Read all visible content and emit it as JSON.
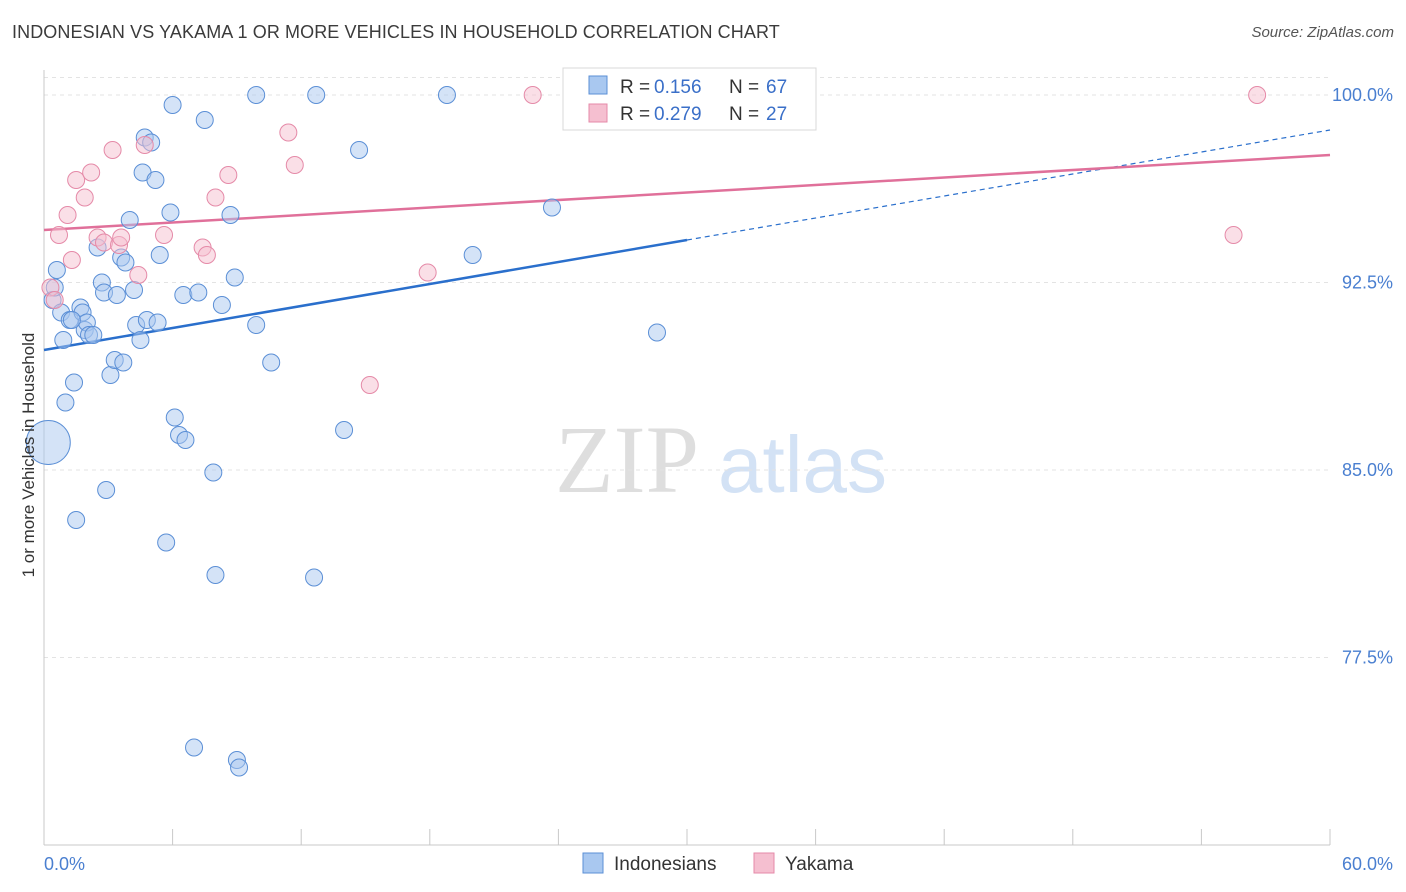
{
  "header": {
    "title": "INDONESIAN VS YAKAMA 1 OR MORE VEHICLES IN HOUSEHOLD CORRELATION CHART",
    "source": "Source: ZipAtlas.com"
  },
  "watermark": {
    "zip": "ZIP",
    "atlas": "atlas"
  },
  "colors": {
    "blue_fill": "#a9c8f0",
    "blue_stroke": "#5b8fd6",
    "blue_line": "#2a6fcc",
    "pink_fill": "#f5bfd0",
    "pink_stroke": "#e58aa8",
    "pink_line": "#e0709a",
    "grid": "#e3e3e3",
    "tick_label": "#4a7fd0"
  },
  "legend": {
    "rows": [
      {
        "r_label": "R =",
        "r_value": "0.156",
        "n_label": "N =",
        "n_value": "67",
        "series": "Indonesians"
      },
      {
        "r_label": "R =",
        "r_value": "0.279",
        "n_label": "N =",
        "n_value": "27",
        "series": "Yakama"
      }
    ]
  },
  "chart_data": {
    "type": "scatter",
    "xlabel": "",
    "ylabel": "1 or more Vehicles in Household",
    "xlim": [
      0,
      60
    ],
    "ylim": [
      70.0,
      101.0
    ],
    "x_tick_labels": [
      "0.0%",
      "60.0%"
    ],
    "y_ticks": [
      77.5,
      85.0,
      92.5,
      100.0
    ],
    "y_tick_labels": [
      "77.5%",
      "85.0%",
      "92.5%",
      "100.0%"
    ],
    "grid": true,
    "legend_placement": "bottom-center",
    "series": [
      {
        "name": "Indonesians",
        "color": "#a9c8f0",
        "points": [
          [
            0.2,
            86.1,
            30
          ],
          [
            0.4,
            91.8,
            10
          ],
          [
            0.5,
            92.3,
            10
          ],
          [
            0.6,
            93.0,
            10
          ],
          [
            0.8,
            91.3,
            10
          ],
          [
            0.9,
            90.2,
            10
          ],
          [
            1.0,
            87.7,
            10
          ],
          [
            1.2,
            91.0,
            10
          ],
          [
            1.4,
            88.5,
            10
          ],
          [
            1.5,
            83.0,
            10
          ],
          [
            1.7,
            91.5,
            10
          ],
          [
            1.8,
            91.3,
            10
          ],
          [
            1.9,
            90.6,
            10
          ],
          [
            2.0,
            90.9,
            10
          ],
          [
            2.1,
            90.4,
            10
          ],
          [
            2.3,
            90.4,
            10
          ],
          [
            2.5,
            93.9,
            10
          ],
          [
            2.7,
            92.5,
            10
          ],
          [
            2.8,
            92.1,
            10
          ],
          [
            2.9,
            84.2,
            10
          ],
          [
            3.1,
            88.8,
            10
          ],
          [
            3.3,
            89.4,
            10
          ],
          [
            3.4,
            92.0,
            10
          ],
          [
            3.6,
            93.5,
            10
          ],
          [
            3.7,
            89.3,
            10
          ],
          [
            3.8,
            93.3,
            10
          ],
          [
            4.0,
            95.0,
            10
          ],
          [
            4.2,
            92.2,
            10
          ],
          [
            4.3,
            90.8,
            10
          ],
          [
            4.5,
            90.2,
            10
          ],
          [
            4.6,
            96.9,
            10
          ],
          [
            4.7,
            98.3,
            10
          ],
          [
            4.8,
            91.0,
            10
          ],
          [
            5.0,
            98.1,
            10
          ],
          [
            5.2,
            96.6,
            10
          ],
          [
            5.3,
            90.9,
            10
          ],
          [
            5.4,
            93.6,
            10
          ],
          [
            5.7,
            82.1,
            10
          ],
          [
            5.9,
            95.3,
            10
          ],
          [
            6.0,
            99.6,
            10
          ],
          [
            6.1,
            87.1,
            10
          ],
          [
            6.3,
            86.4,
            10
          ],
          [
            6.5,
            92.0,
            10
          ],
          [
            6.6,
            86.2,
            10
          ],
          [
            7.0,
            73.9,
            10
          ],
          [
            7.2,
            92.1,
            10
          ],
          [
            7.5,
            99.0,
            10
          ],
          [
            7.9,
            84.9,
            10
          ],
          [
            8.0,
            80.8,
            10
          ],
          [
            8.3,
            91.6,
            10
          ],
          [
            8.7,
            95.2,
            10
          ],
          [
            8.9,
            92.7,
            10
          ],
          [
            9.0,
            73.4,
            10
          ],
          [
            9.1,
            73.1,
            10
          ],
          [
            9.9,
            100.0,
            10
          ],
          [
            9.9,
            90.8,
            10
          ],
          [
            10.6,
            89.3,
            10
          ],
          [
            12.7,
            100.0,
            10
          ],
          [
            12.6,
            80.7,
            10
          ],
          [
            14.0,
            86.6,
            10
          ],
          [
            14.7,
            97.8,
            10
          ],
          [
            18.8,
            100.0,
            10
          ],
          [
            20.0,
            93.6,
            10
          ],
          [
            23.7,
            95.5,
            10
          ],
          [
            28.6,
            90.5,
            10
          ],
          [
            29.5,
            100.0,
            10
          ],
          [
            1.3,
            91.0,
            10
          ]
        ]
      },
      {
        "name": "Yakama",
        "color": "#f5bfd0",
        "points": [
          [
            0.3,
            92.3,
            10
          ],
          [
            0.5,
            91.8,
            10
          ],
          [
            0.7,
            94.4,
            10
          ],
          [
            1.1,
            95.2,
            10
          ],
          [
            1.3,
            93.4,
            10
          ],
          [
            1.5,
            96.6,
            10
          ],
          [
            1.9,
            95.9,
            10
          ],
          [
            2.2,
            96.9,
            10
          ],
          [
            2.5,
            94.3,
            10
          ],
          [
            2.8,
            94.1,
            10
          ],
          [
            3.2,
            97.8,
            10
          ],
          [
            3.5,
            94.0,
            10
          ],
          [
            3.6,
            94.3,
            10
          ],
          [
            4.4,
            92.8,
            10
          ],
          [
            4.7,
            98.0,
            10
          ],
          [
            5.6,
            94.4,
            10
          ],
          [
            7.4,
            93.9,
            10
          ],
          [
            7.6,
            93.6,
            10
          ],
          [
            8.0,
            95.9,
            10
          ],
          [
            8.6,
            96.8,
            10
          ],
          [
            11.4,
            98.5,
            10
          ],
          [
            11.7,
            97.2,
            10
          ],
          [
            15.2,
            88.4,
            10
          ],
          [
            17.9,
            92.9,
            10
          ],
          [
            22.8,
            100.0,
            10
          ],
          [
            56.6,
            100.0,
            10
          ],
          [
            55.5,
            94.4,
            10
          ]
        ]
      }
    ],
    "trendlines": [
      {
        "series": "Indonesians",
        "x0": 0,
        "y0": 89.8,
        "x1": 30.0,
        "y1": 94.2,
        "dashed_to_x": 60,
        "dashed_to_y": 98.6
      },
      {
        "series": "Yakama",
        "x0": 0,
        "y0": 94.6,
        "x1": 60,
        "y1": 97.6
      }
    ]
  }
}
